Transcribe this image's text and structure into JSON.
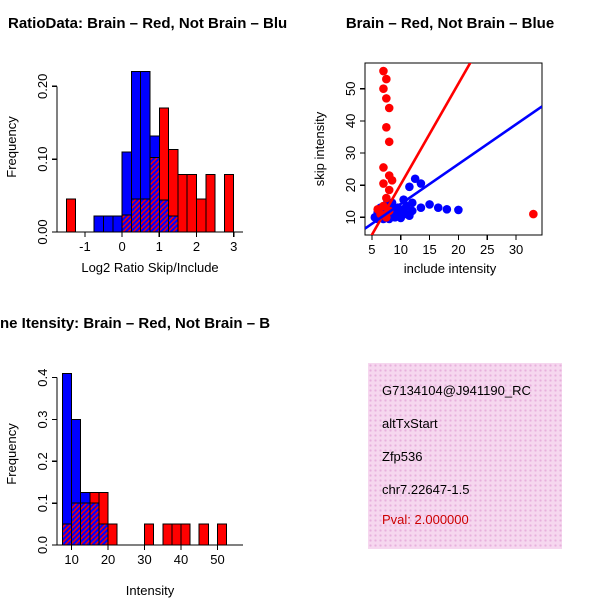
{
  "figure": {
    "background": "#ffffff",
    "legend": {
      "brain_color": "#ff0000",
      "not_brain_color": "#0000ff"
    }
  },
  "chart_data": [
    {
      "id": "ratio_hist",
      "type": "histogram",
      "title": "RatioData: Brain – Red, Not Brain – Blu",
      "xlabel": "Log2 Ratio Skip/Include",
      "ylabel": "Frequency",
      "bin_start": -1.5,
      "bin_width": 0.25,
      "xlim": [
        -1.75,
        3.25
      ],
      "ylim": [
        0,
        0.232
      ],
      "x_ticks": [
        -1,
        0,
        1,
        2,
        3
      ],
      "y_ticks": [
        0,
        0.1,
        0.2
      ],
      "y_tick_labels": [
        "0.00",
        "0.10",
        "0.20"
      ],
      "grid": false,
      "legend_position": "none",
      "series": [
        {
          "name": "Brain",
          "color": "#ff0000",
          "values": [
            0.045,
            0,
            0,
            0,
            0,
            0,
            0.023,
            0.045,
            0.045,
            0.102,
            0.17,
            0.113,
            0.079,
            0.079,
            0.045,
            0.079,
            0,
            0.079
          ]
        },
        {
          "name": "Not Brain",
          "color": "#0000ff",
          "values": [
            0,
            0,
            0,
            0.022,
            0.022,
            0.022,
            0.11,
            0.22,
            0.22,
            0.132,
            0.044,
            0.022,
            0,
            0,
            0,
            0,
            0,
            0
          ]
        }
      ]
    },
    {
      "id": "scatter",
      "type": "scatter",
      "title": "Brain – Red, Not Brain – Blue",
      "xlabel": "include intensity",
      "ylabel": "skip intensity",
      "xlim": [
        3.8,
        34.5
      ],
      "ylim": [
        4.5,
        58
      ],
      "x_ticks": [
        5,
        10,
        15,
        20,
        25,
        30
      ],
      "y_ticks": [
        10,
        20,
        30,
        40,
        50
      ],
      "grid": false,
      "legend_position": "none",
      "series": [
        {
          "name": "Not Brain",
          "color": "#0000ff",
          "points": [
            [
              5.5,
              10
            ],
            [
              6,
              9.5
            ],
            [
              6,
              11.5
            ],
            [
              6.5,
              10.5
            ],
            [
              7,
              9.5
            ],
            [
              7,
              11
            ],
            [
              7.5,
              10.5
            ],
            [
              7.5,
              12
            ],
            [
              8,
              9.5
            ],
            [
              8,
              11
            ],
            [
              8.5,
              10.5
            ],
            [
              8.5,
              12.5
            ],
            [
              9,
              10
            ],
            [
              9,
              11.5
            ],
            [
              9.5,
              10.5
            ],
            [
              9.5,
              13
            ],
            [
              10,
              9.8
            ],
            [
              10,
              11.5
            ],
            [
              10.5,
              12.5
            ],
            [
              10.5,
              15.5
            ],
            [
              11,
              11
            ],
            [
              11,
              13.5
            ],
            [
              11.5,
              10.5
            ],
            [
              11.5,
              19.5
            ],
            [
              12,
              12
            ],
            [
              12,
              14.5
            ],
            [
              12.5,
              22
            ],
            [
              13.5,
              20.5
            ],
            [
              13.5,
              13
            ],
            [
              15,
              14
            ],
            [
              16.5,
              13
            ],
            [
              18,
              12.5
            ],
            [
              20,
              12.3
            ],
            [
              6.5,
              13
            ],
            [
              7.5,
              14
            ],
            [
              8.5,
              14.5
            ]
          ]
        },
        {
          "name": "Brain",
          "color": "#ff0000",
          "points": [
            [
              7,
              55.5
            ],
            [
              7.5,
              53
            ],
            [
              7,
              50
            ],
            [
              7.5,
              47
            ],
            [
              8,
              44
            ],
            [
              7.5,
              38
            ],
            [
              8,
              33.5
            ],
            [
              7,
              25.5
            ],
            [
              8,
              23
            ],
            [
              8.5,
              21.5
            ],
            [
              7,
              20.5
            ],
            [
              8,
              18.5
            ],
            [
              7.5,
              16
            ],
            [
              7,
              13.5
            ],
            [
              8,
              12
            ],
            [
              6.5,
              11
            ],
            [
              7.5,
              10
            ],
            [
              6,
              12.5
            ],
            [
              33,
              11
            ]
          ]
        }
      ],
      "lines": [
        {
          "name": "brain-fit",
          "color": "#ff0000",
          "from": [
            4.5,
            3
          ],
          "to": [
            23,
            61
          ]
        },
        {
          "name": "not-brain-fit",
          "color": "#0000ff",
          "from": [
            3.8,
            6.5
          ],
          "to": [
            34.5,
            44.5
          ]
        }
      ]
    },
    {
      "id": "intensity_hist",
      "type": "histogram",
      "title": "ne Itensity: Brain – Red, Not Brain – B",
      "xlabel": "Intensity",
      "ylabel": "Frequency",
      "bin_start": 7.5,
      "bin_width": 2.5,
      "xlim": [
        6,
        57
      ],
      "ylim": [
        0,
        0.435
      ],
      "x_ticks": [
        10,
        20,
        30,
        40,
        50
      ],
      "y_ticks": [
        0,
        0.1,
        0.2,
        0.3,
        0.4
      ],
      "y_tick_labels": [
        "0.0",
        "0.1",
        "0.2",
        "0.3",
        "0.4"
      ],
      "grid": false,
      "legend_position": "none",
      "series": [
        {
          "name": "Brain",
          "color": "#ff0000",
          "values": [
            0.05,
            0.1,
            0.1,
            0.125,
            0.125,
            0.05,
            0,
            0,
            0,
            0.05,
            0,
            0.05,
            0.05,
            0.05,
            0,
            0.05,
            0,
            0.05
          ]
        },
        {
          "name": "Not Brain",
          "color": "#0000ff",
          "values": [
            0.41,
            0.3,
            0.125,
            0.1,
            0.05,
            0,
            0,
            0,
            0,
            0,
            0,
            0,
            0,
            0,
            0,
            0,
            0,
            0
          ]
        }
      ]
    }
  ],
  "info_box": {
    "background": "#f6d7ef",
    "lines": [
      "G7134104@J941190_RC",
      "altTxStart",
      "Zfp536",
      "chr7.22647-1.5"
    ],
    "pval": "Pval: 2.000000",
    "pval_color": "#cc0000"
  }
}
